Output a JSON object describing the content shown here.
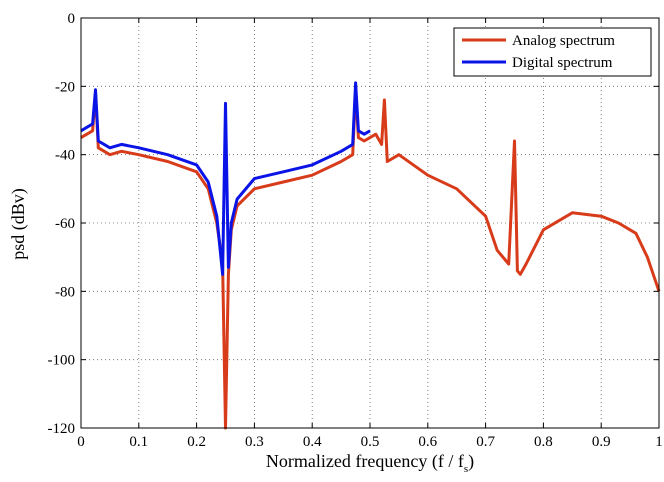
{
  "chart_data": {
    "type": "line",
    "title": "",
    "xlabel": "Normalized frequency (f / f",
    "xlabel_sub": "s",
    "xlabel_close": ")",
    "ylabel": "psd (dBv)",
    "xlim": [
      0,
      1
    ],
    "ylim": [
      -120,
      0
    ],
    "xticks": [
      0,
      0.1,
      0.2,
      0.3,
      0.4,
      0.5,
      0.6,
      0.7,
      0.8,
      0.9,
      1
    ],
    "xtick_labels": [
      "0",
      "0.1",
      "0.2",
      "0.3",
      "0.4",
      "0.5",
      "0.6",
      "0.7",
      "0.8",
      "0.9",
      "1"
    ],
    "yticks": [
      0,
      -20,
      -40,
      -60,
      -80,
      -100,
      -120
    ],
    "ytick_labels": [
      "0",
      "-20",
      "-40",
      "-60",
      "-80",
      "-100",
      "-120"
    ],
    "grid": true,
    "grid_style": "dotted",
    "legend_position": "top-right",
    "series": [
      {
        "name": "Analog spectrum",
        "color": "#d83b1a",
        "x": [
          0.0,
          0.02,
          0.025,
          0.03,
          0.05,
          0.07,
          0.1,
          0.15,
          0.2,
          0.22,
          0.235,
          0.245,
          0.25,
          0.255,
          0.26,
          0.27,
          0.3,
          0.35,
          0.4,
          0.45,
          0.47,
          0.475,
          0.48,
          0.49,
          0.5,
          0.51,
          0.52,
          0.525,
          0.53,
          0.55,
          0.6,
          0.65,
          0.7,
          0.72,
          0.74,
          0.75,
          0.755,
          0.76,
          0.77,
          0.8,
          0.85,
          0.9,
          0.93,
          0.96,
          0.98,
          1.0
        ],
        "y": [
          -35,
          -33,
          -22,
          -38,
          -40,
          -39,
          -40,
          -42,
          -45,
          -50,
          -60,
          -72,
          -120,
          -75,
          -62,
          -55,
          -50,
          -48,
          -46,
          -42,
          -40,
          -21,
          -35,
          -36,
          -35,
          -34,
          -37,
          -24,
          -42,
          -40,
          -46,
          -50,
          -58,
          -68,
          -72,
          -36,
          -74,
          -75,
          -72,
          -62,
          -57,
          -58,
          -60,
          -63,
          -70,
          -80
        ]
      },
      {
        "name": "Digital spectrum",
        "color": "#0a14e6",
        "x": [
          0.0,
          0.02,
          0.025,
          0.03,
          0.05,
          0.07,
          0.1,
          0.15,
          0.2,
          0.22,
          0.235,
          0.245,
          0.25,
          0.255,
          0.26,
          0.27,
          0.3,
          0.35,
          0.4,
          0.45,
          0.47,
          0.475,
          0.48,
          0.49,
          0.5
        ],
        "y": [
          -33,
          -31,
          -21,
          -36,
          -38,
          -37,
          -38,
          -40,
          -43,
          -48,
          -58,
          -75,
          -25,
          -73,
          -60,
          -53,
          -47,
          -45,
          -43,
          -39,
          -37,
          -19,
          -33,
          -34,
          -33
        ]
      }
    ]
  }
}
